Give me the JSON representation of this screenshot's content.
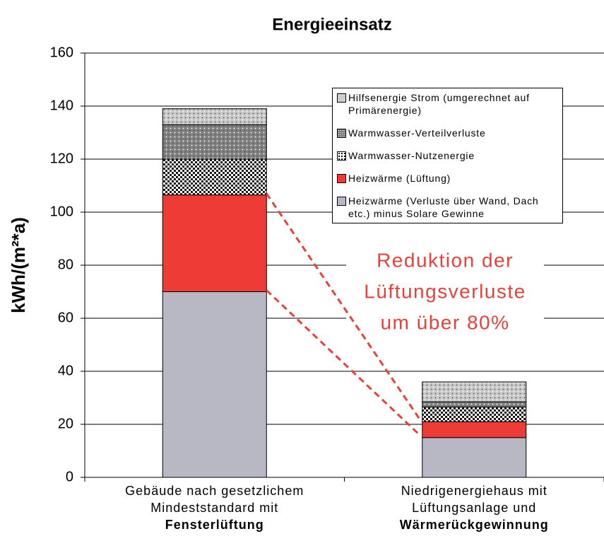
{
  "chart_data": {
    "type": "stacked_bar",
    "title": "Energieeinsatz",
    "y_label": "kWh/(m²*a)",
    "categories": [
      [
        "Gebäude nach gesetzlichem",
        "Mindeststandard mit",
        "Fensterlüftung"
      ],
      [
        "Niedrigenergiehaus mit",
        "Lüftungsanlage und",
        "Wärmerückgewinnung"
      ]
    ],
    "series": [
      {
        "name": "Heizwärme (Verluste über Wand, Dach etc.) minus Solare Gewinne",
        "color": "#b7b8c3",
        "pattern": "solid",
        "values": [
          70,
          15
        ]
      },
      {
        "name": "Heizwärme (Lüftung)",
        "color": "#ee3b35",
        "pattern": "solid",
        "values": [
          36.5,
          6
        ]
      },
      {
        "name": "Warmwasser-Nutzenergie",
        "color": "#000000",
        "pattern": "checker",
        "values": [
          13.5,
          5.5
        ]
      },
      {
        "name": "Warmwasser-Verteilverluste",
        "color": "#808080",
        "pattern": "dots",
        "values": [
          13,
          2
        ]
      },
      {
        "name": "Hilfsenergie Strom (umgerechnet auf Primärenergie)",
        "color": "#c8c8c8",
        "pattern": "dots",
        "values": [
          6,
          7.5
        ]
      }
    ],
    "annotation": [
      "Reduktion der",
      "Lüftungsverluste",
      "um über 80%"
    ],
    "annotation_color": "#e8413b",
    "ylim": [
      0,
      160
    ],
    "yticks": [
      0,
      20,
      40,
      60,
      80,
      100,
      120,
      140,
      160
    ],
    "grid": true
  }
}
